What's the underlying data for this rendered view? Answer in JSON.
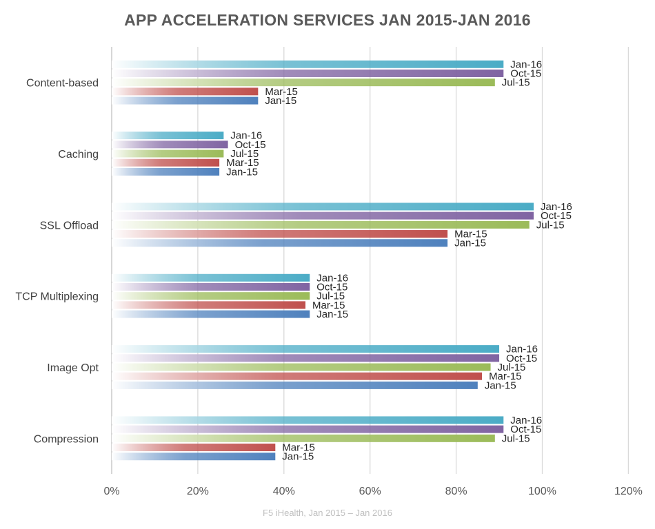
{
  "chart_data": {
    "type": "bar",
    "orientation": "horizontal",
    "title": "APP ACCELERATION SERVICES JAN 2015-JAN 2016",
    "source": "F5 iHealth, Jan 2015 – Jan 2016",
    "categories": [
      "Content-based",
      "Caching",
      "SSL Offload",
      "TCP Multiplexing",
      "Image Opt",
      "Compression"
    ],
    "x_ticks": [
      "0%",
      "20%",
      "40%",
      "60%",
      "80%",
      "100%",
      "120%"
    ],
    "xlim": [
      0,
      120
    ],
    "grid": true,
    "legend": "none",
    "series": [
      {
        "name": "Jan-16",
        "color": "#4bacc6",
        "values": [
          91,
          26,
          98,
          46,
          90,
          91
        ]
      },
      {
        "name": "Oct-15",
        "color": "#8064a2",
        "values": [
          91,
          27,
          98,
          46,
          90,
          91
        ]
      },
      {
        "name": "Jul-15",
        "color": "#9bbb59",
        "values": [
          89,
          26,
          97,
          46,
          88,
          89
        ]
      },
      {
        "name": "Mar-15",
        "color": "#c0504d",
        "values": [
          34,
          25,
          78,
          45,
          86,
          38
        ]
      },
      {
        "name": "Jan-15",
        "color": "#4f81bd",
        "values": [
          34,
          25,
          78,
          46,
          85,
          38
        ]
      }
    ]
  }
}
